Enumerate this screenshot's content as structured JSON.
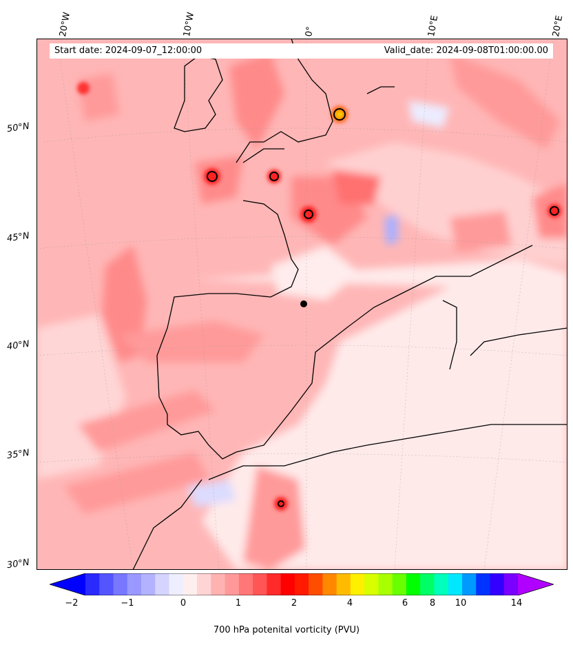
{
  "header": {
    "start_date": "Start date: 2024-09-07_12:00:00",
    "valid_date": "Valid_date: 2024-09-08T01:00:00.00"
  },
  "map": {
    "projection": "conic",
    "lon_labels": [
      "20°W",
      "10°W",
      "0°",
      "10°E",
      "20°E"
    ],
    "lat_labels": [
      "50°N",
      "45°N",
      "40°N",
      "35°N",
      "30°N"
    ],
    "gridlines": true,
    "coastline_color": "#000000",
    "contour_color": "#000000"
  },
  "colorbar": {
    "title": "700 hPa potenital vorticity (PVU)",
    "tick_labels": [
      "−2",
      "−1",
      "0",
      "1",
      "2",
      "4",
      "6",
      "8",
      "10",
      "14"
    ],
    "extend": "both",
    "colors": [
      "#0000ff",
      "#2a2aff",
      "#5555ff",
      "#7777ff",
      "#9999ff",
      "#b2b2ff",
      "#d4d4ff",
      "#eeeeff",
      "#ffeeee",
      "#ffd4d4",
      "#ffb2b2",
      "#ff9999",
      "#ff7777",
      "#ff5555",
      "#ff2a2a",
      "#ff0000",
      "#ff1a00",
      "#ff4d00",
      "#ff8800",
      "#ffbb00",
      "#fff000",
      "#d8ff00",
      "#a8ff00",
      "#6aff00",
      "#00ff00",
      "#00ff66",
      "#00ffbb",
      "#00e8ff",
      "#0099ff",
      "#0033ff",
      "#3300ff",
      "#7a00ff",
      "#b000ff"
    ]
  }
}
